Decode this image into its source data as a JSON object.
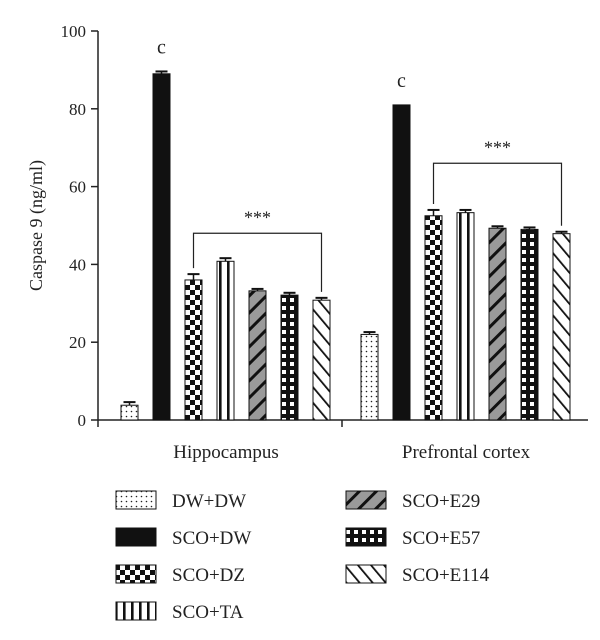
{
  "chart_data": {
    "type": "bar",
    "ylabel": "Caspase 9 (ng/ml)",
    "ylim": [
      0,
      100
    ],
    "yticks": [
      "0",
      "20",
      "40",
      "60",
      "80",
      "100"
    ],
    "groups": [
      "Hippocampus",
      "Prefrontal cortex"
    ],
    "series": [
      {
        "name": "DW+DW",
        "pattern": "dots",
        "values": [
          3.8,
          22
        ],
        "errors": [
          0.8,
          0.6
        ]
      },
      {
        "name": "SCO+DW",
        "pattern": "solid",
        "values": [
          89,
          81
        ],
        "errors": [
          0.6,
          0
        ]
      },
      {
        "name": "SCO+DZ",
        "pattern": "checker",
        "values": [
          36,
          52.5
        ],
        "errors": [
          1.5,
          1.5
        ]
      },
      {
        "name": "SCO+TA",
        "pattern": "vstripes",
        "values": [
          40.8,
          53.3
        ],
        "errors": [
          0.8,
          0.7
        ]
      },
      {
        "name": "SCO+E29",
        "pattern": "diag-gray",
        "values": [
          33.2,
          49.3
        ],
        "errors": [
          0.5,
          0.5
        ]
      },
      {
        "name": "SCO+E57",
        "pattern": "grid",
        "values": [
          32.1,
          49
        ],
        "errors": [
          0.6,
          0.5
        ]
      },
      {
        "name": "SCO+E114",
        "pattern": "diag-white",
        "values": [
          30.8,
          47.9
        ],
        "errors": [
          0.6,
          0.5
        ]
      }
    ],
    "annotations": [
      {
        "text": "c",
        "group": 0,
        "series": 1
      },
      {
        "text": "c",
        "group": 1,
        "series": 1
      },
      {
        "text": "***",
        "group": 0,
        "from_series": 2,
        "to_series": 6,
        "y": 48
      },
      {
        "text": "***",
        "group": 1,
        "from_series": 2,
        "to_series": 6,
        "y": 66
      }
    ],
    "legend_placement": "bottom"
  }
}
